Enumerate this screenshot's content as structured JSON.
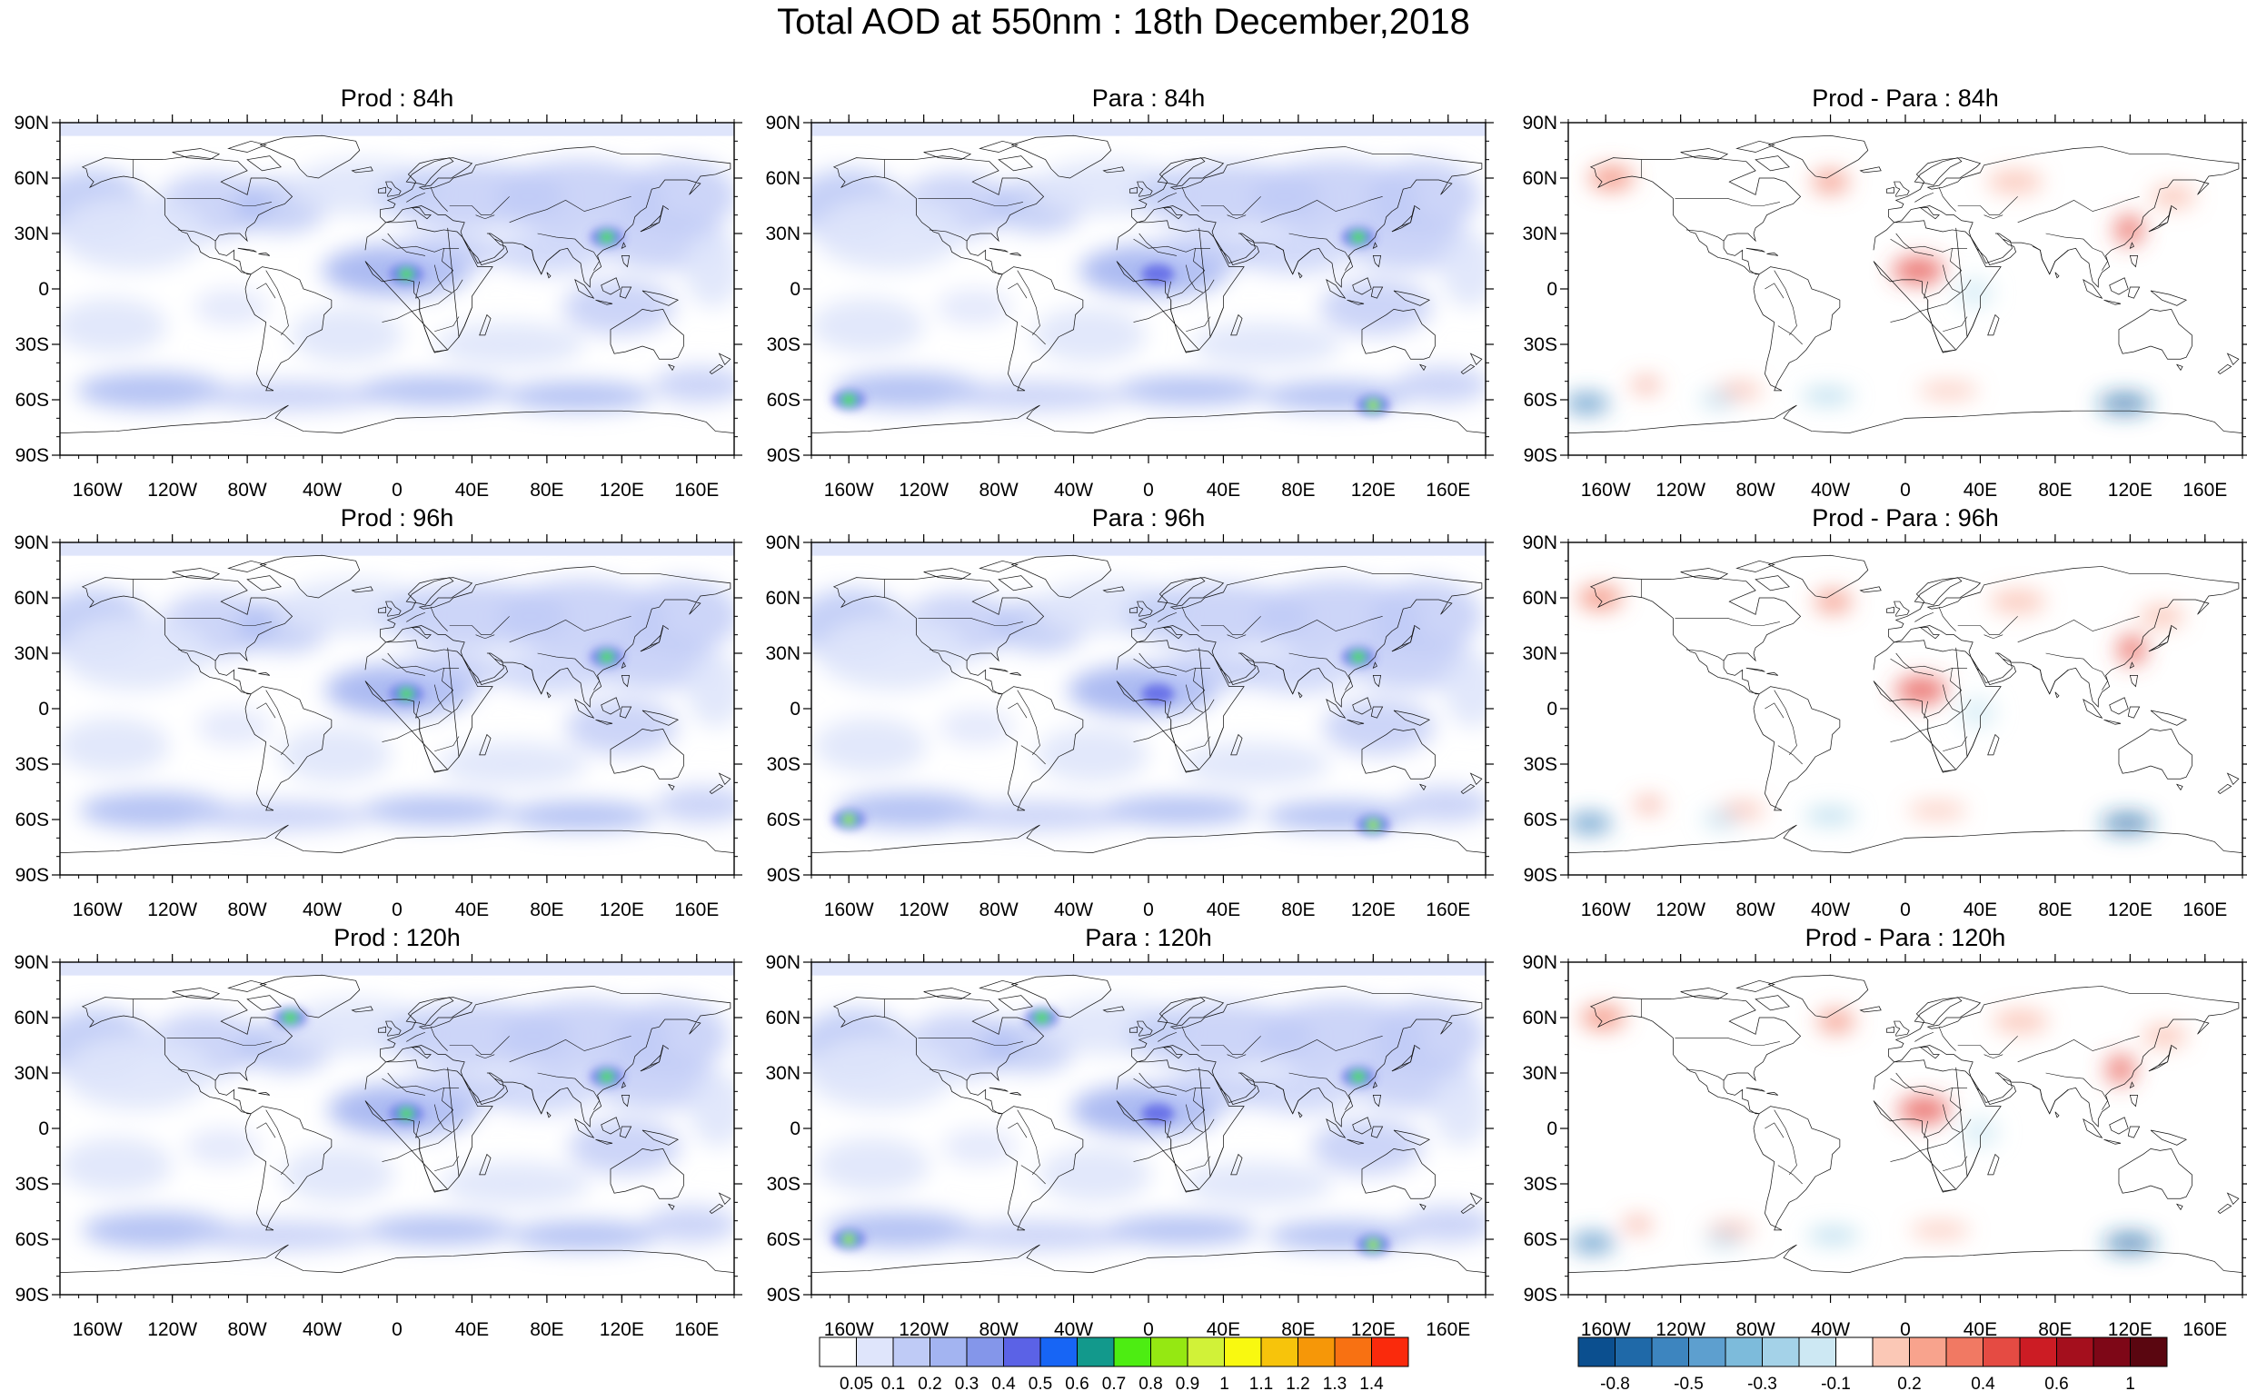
{
  "title": "Total AOD at 550nm : 18th December,2018",
  "panels": [
    {
      "title": "Prod : 84h",
      "kind": "aod"
    },
    {
      "title": "Para : 84h",
      "kind": "aod"
    },
    {
      "title": "Prod - Para : 84h",
      "kind": "diff"
    },
    {
      "title": "Prod : 96h",
      "kind": "aod"
    },
    {
      "title": "Para : 96h",
      "kind": "aod"
    },
    {
      "title": "Prod - Para : 96h",
      "kind": "diff"
    },
    {
      "title": "Prod : 120h",
      "kind": "aod"
    },
    {
      "title": "Para : 120h",
      "kind": "aod"
    },
    {
      "title": "Prod - Para : 120h",
      "kind": "diff"
    }
  ],
  "chart_data": {
    "type": "heatmap",
    "projection": "cylindrical equidistant",
    "lon_ticks": [
      "160W",
      "120W",
      "80W",
      "40W",
      "0",
      "40E",
      "80E",
      "120E",
      "160E"
    ],
    "lon_tick_values": [
      -160,
      -120,
      -80,
      -40,
      0,
      40,
      80,
      120,
      160
    ],
    "lat_ticks": [
      "90N",
      "60N",
      "30N",
      "0",
      "30S",
      "60S",
      "90S"
    ],
    "lat_tick_values": [
      90,
      60,
      30,
      0,
      -30,
      -60,
      -90
    ],
    "xlim": [
      -180,
      180
    ],
    "ylim": [
      -90,
      90
    ],
    "aod_colorbar": {
      "labels": [
        "0.05",
        "0.1",
        "0.2",
        "0.3",
        "0.4",
        "0.5",
        "0.6",
        "0.7",
        "0.8",
        "0.9",
        "1",
        "1.1",
        "1.2",
        "1.3",
        "1.4"
      ],
      "colors": [
        "#ffffff",
        "#dfe5fb",
        "#bfcbf6",
        "#a3b4f1",
        "#8496ea",
        "#5b62e6",
        "#1765f5",
        "#12998c",
        "#4ded12",
        "#95e812",
        "#d1f238",
        "#f9f910",
        "#f7c40b",
        "#f69708",
        "#f87112",
        "#fa2a0c"
      ]
    },
    "diff_colorbar": {
      "labels": [
        "-0.8",
        "-0.5",
        "-0.3",
        "-0.1",
        "0.2",
        "0.4",
        "0.6",
        "1"
      ],
      "colors": [
        "#0b4f8f",
        "#1f69a8",
        "#3d85bf",
        "#5d9fcf",
        "#7dbbdb",
        "#a4d2e8",
        "#cde8f3",
        "#ffffff",
        "#fbc8b6",
        "#f8a38d",
        "#f17963",
        "#e54b43",
        "#cc1c24",
        "#a40f1d",
        "#7e0717",
        "#5a0610"
      ]
    },
    "features": [
      {
        "name": "Central Africa maximum",
        "lon": 5,
        "lat": 8,
        "panel_peaks": {
          "Prod : 84h": 0.9,
          "Para : 84h": 0.45,
          "Prod : 96h": 0.9,
          "Para : 96h": 0.45,
          "Prod : 120h": 0.8,
          "Para : 120h": 0.45
        }
      },
      {
        "name": "East China maximum",
        "lon": 112,
        "lat": 28,
        "panel_peaks": {
          "Prod : 84h": 0.9,
          "Para : 84h": 0.8,
          "Prod : 96h": 0.8,
          "Para : 96h": 0.9,
          "Prod : 120h": 0.8,
          "Para : 120h": 0.8
        }
      },
      {
        "name": "Southern Ocean storm (160W)",
        "lon": -160,
        "lat": -60,
        "panel_peaks": {
          "Para : 84h": 0.9,
          "Para : 96h": 1.1,
          "Para : 120h": 1.0
        }
      },
      {
        "name": "Southern Ocean storm (120E)",
        "lon": 120,
        "lat": -63,
        "panel_peaks": {
          "Para : 84h": 1.2,
          "Para : 96h": 1.1,
          "Para : 120h": 1.1
        }
      },
      {
        "name": "North Atlantic (Labrador)",
        "lon": -57,
        "lat": 60,
        "panel_peaks": {
          "Prod : 120h": 0.8,
          "Para : 120h": 0.9
        }
      }
    ]
  }
}
